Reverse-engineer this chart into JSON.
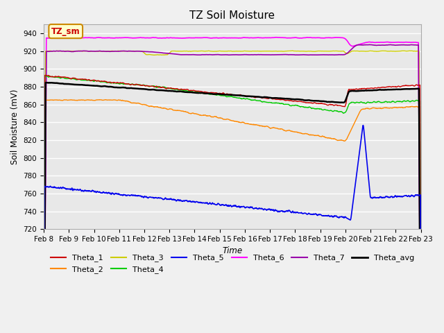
{
  "title": "TZ Soil Moisture",
  "xlabel": "Time",
  "ylabel": "Soil Moisture (mV)",
  "ylim": [
    720,
    950
  ],
  "yticks": [
    720,
    740,
    760,
    780,
    800,
    820,
    840,
    860,
    880,
    900,
    920,
    940
  ],
  "date_labels": [
    "Feb 8",
    "Feb 9",
    "Feb 10",
    "Feb 11",
    "Feb 12",
    "Feb 13",
    "Feb 14",
    "Feb 15",
    "Feb 16",
    "Feb 17",
    "Feb 18",
    "Feb 19",
    "Feb 20",
    "Feb 21",
    "Feb 22",
    "Feb 23"
  ],
  "legend_label": "TZ_sm",
  "fig_facecolor": "#f0f0f0",
  "ax_facecolor": "#e8e8e8",
  "series_colors": {
    "Theta_1": "#cc0000",
    "Theta_2": "#ff8800",
    "Theta_3": "#cccc00",
    "Theta_4": "#00cc00",
    "Theta_5": "#0000ee",
    "Theta_6": "#ff00ff",
    "Theta_7": "#9900aa",
    "Theta_avg": "#000000"
  },
  "series_linewidths": {
    "Theta_1": 1.0,
    "Theta_2": 1.0,
    "Theta_3": 1.0,
    "Theta_4": 1.0,
    "Theta_5": 1.2,
    "Theta_6": 1.2,
    "Theta_7": 1.2,
    "Theta_avg": 1.8
  },
  "legend_ncol_row1": 6,
  "legend_ncol_row2": 2
}
